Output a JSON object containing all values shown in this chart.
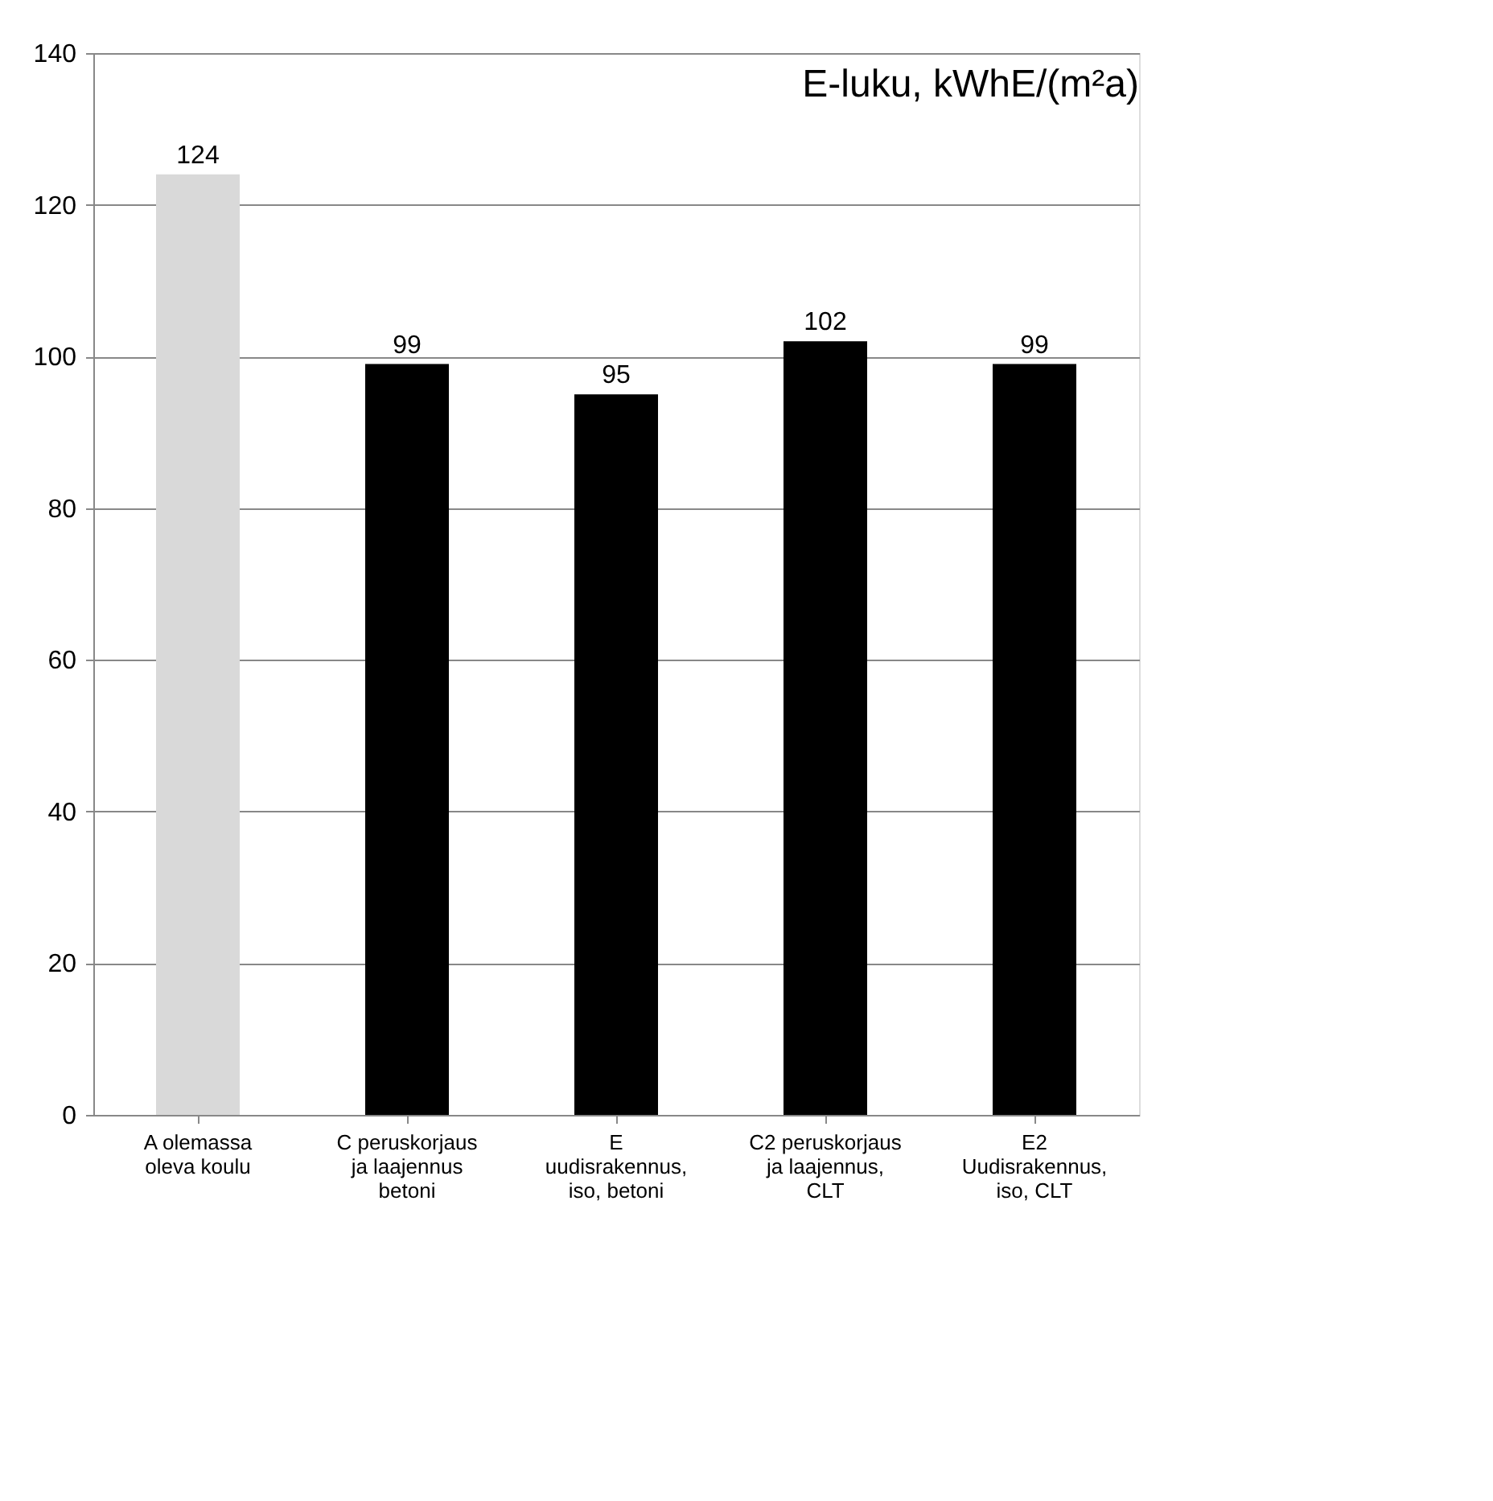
{
  "chart_data": {
    "type": "bar",
    "title": "E-luku, kWhE/(m²a)",
    "categories": [
      "A olemassa\noleva koulu",
      "C peruskorjaus\nja laajennus\nbetoni",
      "E\nuudisrakennus,\niso, betoni",
      "C2 peruskorjaus\nja laajennus,\nCLT",
      "E2\nUudisrakennus,\niso, CLT"
    ],
    "values": [
      124,
      99,
      95,
      102,
      99
    ],
    "colors": [
      "#d9d9d9",
      "#000000",
      "#000000",
      "#000000",
      "#000000"
    ],
    "ylim": [
      0,
      140
    ],
    "yticks": [
      0,
      20,
      40,
      60,
      80,
      100,
      120,
      140
    ],
    "grid": "y",
    "data_labels": true
  }
}
